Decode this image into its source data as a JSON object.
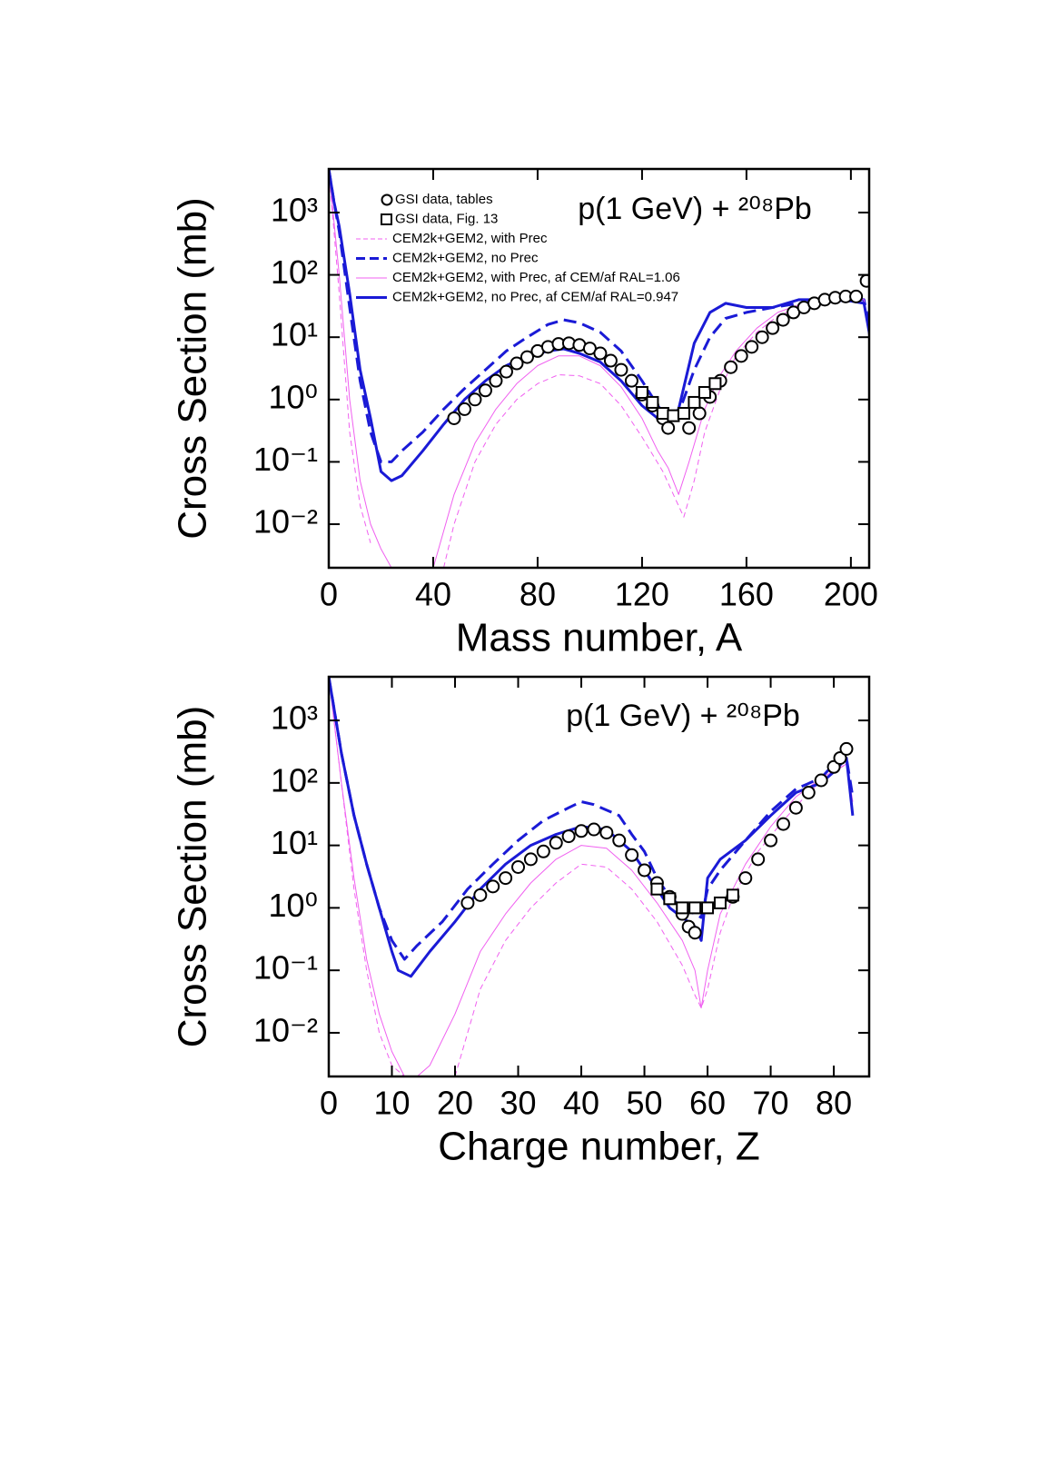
{
  "chart_data": [
    {
      "type": "line",
      "title": "p(1 GeV) + ²⁰⁸Pb",
      "x_label": "Mass number, A",
      "y_label": "Cross Section (mb)",
      "xlim": [
        0,
        207
      ],
      "xticks": [
        0,
        40,
        80,
        120,
        160,
        200
      ],
      "ylim": [
        0.002,
        5000
      ],
      "ylog": true,
      "yticks": [
        {
          "value": 0.01,
          "label": "10⁻²"
        },
        {
          "value": 0.1,
          "label": "10⁻¹"
        },
        {
          "value": 1,
          "label": "10⁰"
        },
        {
          "value": 10,
          "label": "10¹"
        },
        {
          "value": 100,
          "label": "10²"
        },
        {
          "value": 1000,
          "label": "10³"
        }
      ],
      "legend": "upper left",
      "series": [
        {
          "name": "GSI data, tables",
          "marker": "circle",
          "color": "#000000",
          "x": [
            48,
            52,
            56,
            60,
            64,
            68,
            72,
            76,
            80,
            84,
            88,
            92,
            96,
            100,
            104,
            108,
            112,
            116,
            120,
            124,
            128,
            130,
            138,
            142,
            146,
            150,
            154,
            158,
            162,
            166,
            170,
            174,
            178,
            182,
            186,
            190,
            194,
            198,
            202,
            206
          ],
          "values": [
            0.5,
            0.7,
            1.0,
            1.4,
            2.0,
            2.8,
            3.8,
            4.8,
            6,
            7,
            7.8,
            8,
            7.5,
            6.6,
            5.5,
            4.2,
            3,
            2,
            1.2,
            0.8,
            0.5,
            0.35,
            0.35,
            0.6,
            1.1,
            2,
            3.3,
            5,
            7,
            10,
            14,
            19,
            25,
            30,
            35,
            40,
            43,
            45,
            45,
            80
          ]
        },
        {
          "name": "GSI data, Fig. 13",
          "marker": "square",
          "color": "#000000",
          "x": [
            120,
            124,
            128,
            132,
            136,
            140,
            144,
            148
          ],
          "values": [
            1.3,
            0.9,
            0.6,
            0.55,
            0.6,
            0.9,
            1.3,
            1.8
          ]
        },
        {
          "name": "CEM2k+GEM2, with Prec",
          "dash": true,
          "width": 1,
          "color": "#f060f0",
          "x": [
            0,
            4,
            8,
            12,
            16,
            20,
            44,
            48,
            56,
            64,
            72,
            80,
            88,
            96,
            104,
            112,
            120,
            128,
            132,
            136,
            140,
            144,
            150,
            156,
            164,
            172,
            180,
            190,
            200,
            205,
            208
          ],
          "values": [
            5000,
            50,
            0.3,
            0.02,
            0.005,
            null,
            0.002,
            0.01,
            0.1,
            0.4,
            1,
            1.8,
            2.5,
            2.4,
            1.8,
            0.8,
            0.25,
            0.07,
            0.03,
            0.013,
            0.05,
            0.3,
            1.5,
            5,
            12,
            22,
            30,
            38,
            40,
            35,
            8
          ]
        },
        {
          "name": "CEM2k+GEM2, no Prec",
          "dash": true,
          "width": 3,
          "color": "#1a1ad6",
          "x": [
            0,
            2,
            4,
            8,
            12,
            16,
            20,
            24,
            28,
            36,
            44,
            52,
            60,
            68,
            76,
            84,
            90,
            96,
            104,
            112,
            120,
            126,
            130,
            134,
            140,
            146,
            152,
            160,
            170,
            180,
            190,
            200,
            205,
            208
          ],
          "values": [
            5000,
            1500,
            500,
            30,
            2,
            0.3,
            0.1,
            0.1,
            0.15,
            0.3,
            0.7,
            1.5,
            3,
            6,
            10,
            16,
            19,
            17,
            12,
            6,
            2,
            0.8,
            0.5,
            0.6,
            3,
            10,
            20,
            25,
            30,
            35,
            38,
            40,
            40,
            10
          ]
        },
        {
          "name": "CEM2k+GEM2, with Prec, af CEM/af RAL=1.06",
          "width": 1,
          "color": "#f060f0",
          "x": [
            0,
            4,
            8,
            12,
            16,
            20,
            24,
            40,
            48,
            56,
            64,
            72,
            80,
            88,
            96,
            104,
            112,
            120,
            126,
            130,
            134,
            138,
            144,
            150,
            156,
            164,
            172,
            180,
            190,
            200,
            205,
            208
          ],
          "values": [
            5000,
            100,
            1,
            0.05,
            0.01,
            0.004,
            0.002,
            0.002,
            0.03,
            0.2,
            0.7,
            1.8,
            3.5,
            5,
            5,
            3.5,
            1.6,
            0.5,
            0.15,
            0.08,
            0.03,
            0.1,
            0.7,
            2.5,
            6,
            14,
            25,
            33,
            40,
            43,
            40,
            8
          ]
        },
        {
          "name": "CEM2k+GEM2, no Prec, af CEM/af RAL=0.947",
          "width": 3,
          "color": "#1a1ad6",
          "x": [
            0,
            2,
            4,
            8,
            12,
            16,
            20,
            24,
            28,
            36,
            44,
            52,
            60,
            68,
            76,
            84,
            90,
            96,
            104,
            112,
            120,
            126,
            130,
            134,
            140,
            146,
            152,
            160,
            170,
            180,
            190,
            200,
            205,
            208
          ],
          "values": [
            5000,
            1500,
            600,
            50,
            3,
            0.5,
            0.07,
            0.05,
            0.06,
            0.15,
            0.4,
            1,
            2,
            3.5,
            5,
            6,
            6.5,
            5.5,
            4,
            2,
            0.8,
            0.5,
            0.4,
            0.7,
            8,
            25,
            35,
            30,
            30,
            40,
            40,
            38,
            35,
            7
          ]
        }
      ]
    },
    {
      "type": "line",
      "title": "p(1 GeV) + ²⁰⁸Pb",
      "x_label": "Charge number, Z",
      "y_label": "Cross Section (mb)",
      "xlim": [
        0,
        85.6
      ],
      "xticks": [
        0,
        10,
        20,
        30,
        40,
        50,
        60,
        70,
        80
      ],
      "ylim": [
        0.002,
        5000
      ],
      "ylog": true,
      "yticks": [
        {
          "value": 0.01,
          "label": "10⁻²"
        },
        {
          "value": 0.1,
          "label": "10⁻¹"
        },
        {
          "value": 1,
          "label": "10⁰"
        },
        {
          "value": 10,
          "label": "10¹"
        },
        {
          "value": 100,
          "label": "10²"
        },
        {
          "value": 1000,
          "label": "10³"
        }
      ],
      "series": [
        {
          "marker": "circle",
          "color": "#000000",
          "x": [
            22,
            24,
            26,
            28,
            30,
            32,
            34,
            36,
            38,
            40,
            42,
            44,
            46,
            48,
            50,
            52,
            54,
            56,
            57,
            58,
            64,
            66,
            68,
            70,
            72,
            74,
            76,
            78,
            80,
            81,
            82
          ],
          "values": [
            1.2,
            1.6,
            2.2,
            3,
            4.5,
            6,
            8,
            11,
            14,
            17,
            18,
            16,
            12,
            7,
            4,
            2.5,
            1.5,
            0.8,
            0.5,
            0.4,
            1.5,
            3,
            6,
            12,
            22,
            40,
            70,
            110,
            180,
            250,
            350
          ]
        },
        {
          "marker": "square",
          "color": "#000000",
          "x": [
            52,
            54,
            56,
            58,
            60,
            62,
            64
          ],
          "values": [
            2,
            1.4,
            1,
            1,
            1,
            1.2,
            1.6
          ]
        },
        {
          "dash": true,
          "width": 1,
          "color": "#f060f0",
          "x": [
            0,
            2,
            4,
            6,
            8,
            10,
            12,
            14,
            20,
            22,
            24,
            28,
            32,
            36,
            40,
            44,
            48,
            52,
            56,
            58,
            59,
            60,
            62,
            64,
            68,
            72,
            76,
            80,
            82,
            83
          ],
          "values": [
            5000,
            100,
            2,
            0.1,
            0.01,
            0.003,
            0.002,
            null,
            0.002,
            0.01,
            0.05,
            0.3,
            1,
            2.5,
            5,
            4.5,
            2,
            0.6,
            0.12,
            0.04,
            0.025,
            0.05,
            0.4,
            1.5,
            8,
            25,
            70,
            150,
            200,
            50
          ]
        },
        {
          "dash": true,
          "width": 3,
          "color": "#1a1ad6",
          "x": [
            0,
            2,
            4,
            6,
            8,
            10,
            12,
            14,
            18,
            22,
            26,
            30,
            34,
            38,
            40,
            42,
            46,
            48,
            50,
            52,
            54,
            56,
            58,
            59,
            60,
            62,
            66,
            70,
            74,
            78,
            80,
            82,
            83
          ],
          "values": [
            5000,
            300,
            30,
            5,
            1,
            0.3,
            0.15,
            0.25,
            0.6,
            2,
            5,
            12,
            25,
            40,
            50,
            45,
            30,
            15,
            8,
            3,
            1.5,
            1,
            0.8,
            0.7,
            2,
            4,
            12,
            35,
            80,
            120,
            200,
            250,
            60
          ]
        },
        {
          "width": 1,
          "color": "#f060f0",
          "x": [
            0,
            2,
            4,
            6,
            8,
            10,
            12,
            14,
            16,
            20,
            24,
            28,
            32,
            36,
            40,
            44,
            48,
            52,
            56,
            58,
            59,
            60,
            62,
            66,
            70,
            74,
            78,
            82,
            83
          ],
          "values": [
            5000,
            100,
            3,
            0.15,
            0.02,
            0.005,
            0.002,
            0.002,
            0.003,
            0.02,
            0.2,
            0.8,
            2.5,
            6,
            10,
            9,
            4,
            1.2,
            0.3,
            0.1,
            0.025,
            0.1,
            0.8,
            5,
            20,
            60,
            120,
            200,
            50
          ]
        },
        {
          "width": 3,
          "color": "#1a1ad6",
          "x": [
            0,
            2,
            4,
            6,
            8,
            10,
            11,
            13,
            16,
            20,
            24,
            28,
            32,
            36,
            40,
            44,
            48,
            50,
            52,
            54,
            56,
            58,
            59,
            60,
            62,
            66,
            70,
            74,
            78,
            80,
            82,
            83
          ],
          "values": [
            5000,
            300,
            30,
            5,
            1,
            0.2,
            0.1,
            0.08,
            0.2,
            0.6,
            2,
            5,
            10,
            15,
            20,
            18,
            8,
            4,
            2,
            1,
            0.7,
            0.5,
            0.3,
            3,
            6,
            12,
            30,
            70,
            100,
            150,
            250,
            30
          ]
        }
      ]
    }
  ]
}
